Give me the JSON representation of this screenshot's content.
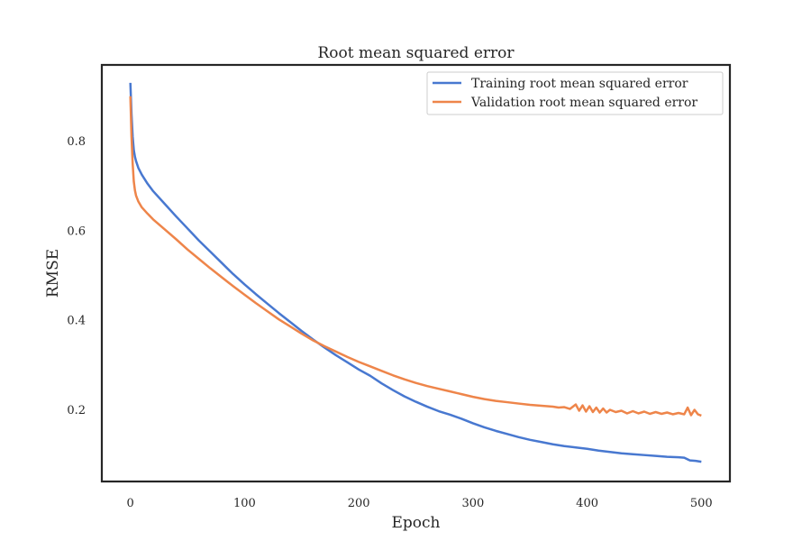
{
  "chart_data": {
    "type": "line",
    "title": "Root mean squared error",
    "xlabel": "Epoch",
    "ylabel": "RMSE",
    "xlim": [
      -25,
      525
    ],
    "ylim": [
      0.04,
      0.97
    ],
    "xticks": [
      0,
      100,
      200,
      300,
      400,
      500
    ],
    "yticks": [
      0.2,
      0.4,
      0.6,
      0.8
    ],
    "grid": false,
    "legend": "top-right",
    "series": [
      {
        "name": "Training root mean squared error",
        "color": "#4878d0",
        "x": [
          0,
          1,
          2,
          3,
          4,
          5,
          7,
          10,
          15,
          20,
          30,
          40,
          50,
          60,
          70,
          80,
          90,
          100,
          110,
          120,
          130,
          140,
          150,
          160,
          170,
          180,
          190,
          200,
          210,
          220,
          230,
          240,
          250,
          260,
          270,
          280,
          290,
          300,
          310,
          320,
          330,
          340,
          350,
          360,
          370,
          380,
          390,
          400,
          410,
          420,
          430,
          440,
          450,
          460,
          470,
          480,
          485,
          490,
          495,
          500
        ],
        "y": [
          0.93,
          0.86,
          0.81,
          0.78,
          0.765,
          0.755,
          0.74,
          0.725,
          0.705,
          0.688,
          0.66,
          0.632,
          0.605,
          0.578,
          0.553,
          0.528,
          0.503,
          0.48,
          0.458,
          0.437,
          0.416,
          0.396,
          0.376,
          0.357,
          0.339,
          0.322,
          0.306,
          0.29,
          0.276,
          0.259,
          0.244,
          0.23,
          0.218,
          0.207,
          0.197,
          0.189,
          0.18,
          0.17,
          0.161,
          0.153,
          0.146,
          0.139,
          0.133,
          0.128,
          0.123,
          0.119,
          0.116,
          0.113,
          0.109,
          0.106,
          0.103,
          0.101,
          0.099,
          0.097,
          0.095,
          0.094,
          0.093,
          0.087,
          0.086,
          0.084
        ]
      },
      {
        "name": "Validation root mean squared error",
        "color": "#ee854a",
        "x": [
          0,
          1,
          2,
          3,
          4,
          5,
          7,
          10,
          15,
          20,
          30,
          40,
          50,
          60,
          70,
          80,
          90,
          100,
          110,
          120,
          130,
          140,
          150,
          160,
          170,
          180,
          190,
          200,
          210,
          220,
          230,
          240,
          250,
          260,
          270,
          280,
          290,
          300,
          310,
          320,
          330,
          340,
          350,
          360,
          370,
          375,
          380,
          385,
          390,
          393,
          396,
          399,
          402,
          405,
          408,
          411,
          414,
          417,
          420,
          425,
          430,
          435,
          440,
          445,
          450,
          455,
          460,
          465,
          470,
          475,
          480,
          485,
          488,
          491,
          494,
          497,
          500
        ],
        "y": [
          0.9,
          0.81,
          0.75,
          0.71,
          0.69,
          0.678,
          0.665,
          0.652,
          0.638,
          0.625,
          0.603,
          0.581,
          0.558,
          0.537,
          0.516,
          0.496,
          0.476,
          0.457,
          0.438,
          0.42,
          0.402,
          0.386,
          0.37,
          0.355,
          0.342,
          0.33,
          0.318,
          0.307,
          0.297,
          0.287,
          0.277,
          0.268,
          0.26,
          0.253,
          0.247,
          0.241,
          0.235,
          0.229,
          0.224,
          0.22,
          0.217,
          0.214,
          0.211,
          0.209,
          0.207,
          0.205,
          0.206,
          0.202,
          0.212,
          0.198,
          0.21,
          0.196,
          0.208,
          0.195,
          0.205,
          0.194,
          0.203,
          0.194,
          0.2,
          0.195,
          0.198,
          0.192,
          0.197,
          0.192,
          0.196,
          0.191,
          0.195,
          0.191,
          0.194,
          0.19,
          0.193,
          0.19,
          0.205,
          0.188,
          0.2,
          0.19,
          0.187
        ]
      }
    ]
  }
}
